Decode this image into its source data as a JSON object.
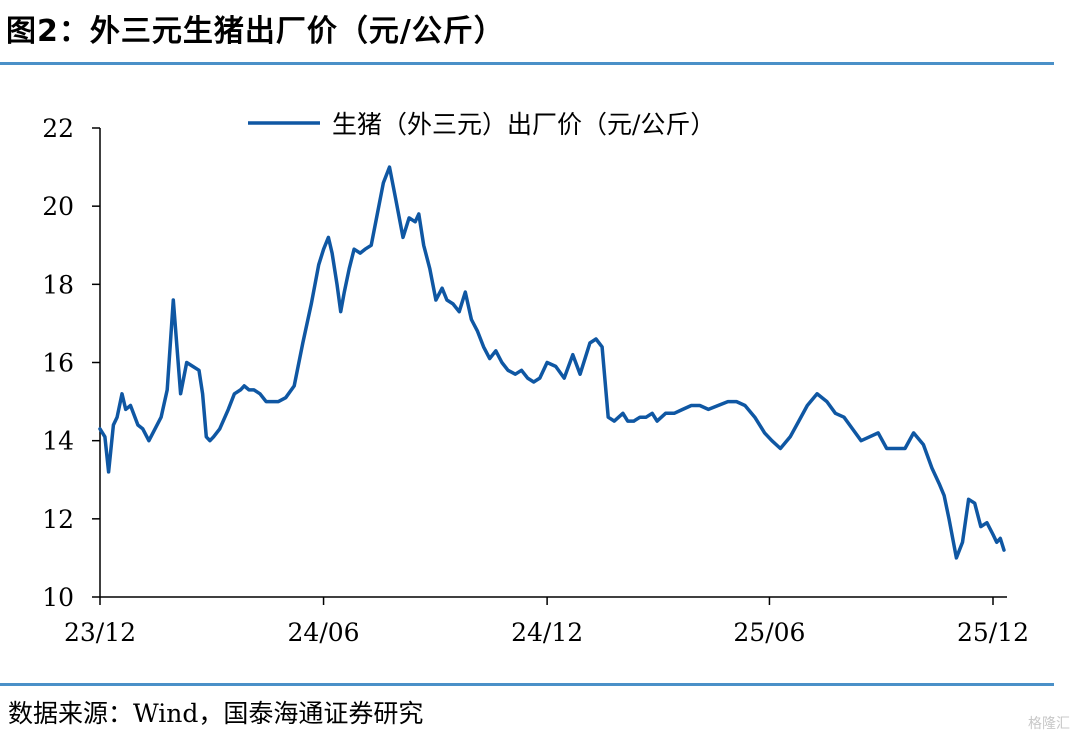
{
  "header": {
    "title": "图2：外三元生猪出厂价（元/公斤）"
  },
  "footer": {
    "source": "数据来源：Wind，国泰海通证券研究",
    "watermark": "格隆汇"
  },
  "colors": {
    "line": "#0f57a3",
    "rule": "#4a90c8",
    "axis": "#000000"
  },
  "chart_data": {
    "type": "line",
    "title": "",
    "xlabel": "",
    "ylabel": "",
    "ylim": [
      10,
      22
    ],
    "yticks": [
      10,
      12,
      14,
      16,
      18,
      20,
      22
    ],
    "xticks": [
      "23/12",
      "24/06",
      "24/12",
      "25/06",
      "25/12"
    ],
    "x_range": [
      "2023-12",
      "2025-12"
    ],
    "grid": false,
    "legend": "top-center",
    "series": [
      {
        "name": "生猪（外三元）出厂价（元/公斤）",
        "x": [
          "2023-12-01",
          "2023-12-05",
          "2023-12-08",
          "2023-12-12",
          "2023-12-15",
          "2023-12-19",
          "2023-12-22",
          "2023-12-26",
          "2024-01-01",
          "2024-01-05",
          "2024-01-10",
          "2024-01-15",
          "2024-01-20",
          "2024-01-25",
          "2024-01-30",
          "2024-02-05",
          "2024-02-10",
          "2024-02-15",
          "2024-02-20",
          "2024-02-23",
          "2024-02-26",
          "2024-02-29",
          "2024-03-03",
          "2024-03-08",
          "2024-03-15",
          "2024-03-20",
          "2024-03-25",
          "2024-03-28",
          "2024-04-01",
          "2024-04-05",
          "2024-04-10",
          "2024-04-15",
          "2024-04-20",
          "2024-04-25",
          "2024-05-01",
          "2024-05-08",
          "2024-05-15",
          "2024-05-22",
          "2024-05-28",
          "2024-06-01",
          "2024-06-05",
          "2024-06-08",
          "2024-06-12",
          "2024-06-15",
          "2024-06-18",
          "2024-06-22",
          "2024-06-26",
          "2024-07-01",
          "2024-07-05",
          "2024-07-10",
          "2024-07-15",
          "2024-07-20",
          "2024-07-25",
          "2024-07-30",
          "2024-08-05",
          "2024-08-10",
          "2024-08-15",
          "2024-08-18",
          "2024-08-22",
          "2024-08-27",
          "2024-09-01",
          "2024-09-06",
          "2024-09-10",
          "2024-09-15",
          "2024-09-20",
          "2024-09-25",
          "2024-09-30",
          "2024-10-05",
          "2024-10-10",
          "2024-10-15",
          "2024-10-20",
          "2024-10-25",
          "2024-10-30",
          "2024-11-05",
          "2024-11-10",
          "2024-11-15",
          "2024-11-20",
          "2024-11-25",
          "2024-12-01",
          "2024-12-08",
          "2024-12-15",
          "2024-12-22",
          "2024-12-28",
          "2025-01-05",
          "2025-01-10",
          "2025-01-15",
          "2025-01-20",
          "2025-01-25",
          "2025-02-01",
          "2025-02-05",
          "2025-02-10",
          "2025-02-15",
          "2025-02-20",
          "2025-02-25",
          "2025-03-01",
          "2025-03-08",
          "2025-03-15",
          "2025-03-22",
          "2025-03-29",
          "2025-04-05",
          "2025-04-12",
          "2025-04-20",
          "2025-04-28",
          "2025-05-05",
          "2025-05-12",
          "2025-05-20",
          "2025-05-28",
          "2025-06-03",
          "2025-06-10",
          "2025-06-18",
          "2025-06-25",
          "2025-07-02",
          "2025-07-10",
          "2025-07-18",
          "2025-07-25",
          "2025-08-01",
          "2025-08-08",
          "2025-08-15",
          "2025-08-22",
          "2025-08-29",
          "2025-09-05",
          "2025-09-12",
          "2025-09-20",
          "2025-09-27",
          "2025-10-05",
          "2025-10-12",
          "2025-10-18",
          "2025-10-22",
          "2025-10-26",
          "2025-11-01",
          "2025-11-06",
          "2025-11-11",
          "2025-11-16",
          "2025-11-21",
          "2025-11-26",
          "2025-12-01",
          "2025-12-04",
          "2025-12-07",
          "2025-12-10"
        ],
        "values": [
          14.3,
          14.1,
          13.2,
          14.4,
          14.6,
          15.2,
          14.8,
          14.9,
          14.4,
          14.3,
          14.0,
          14.3,
          14.6,
          15.3,
          17.6,
          15.2,
          16.0,
          15.9,
          15.8,
          15.2,
          14.1,
          14.0,
          14.1,
          14.3,
          14.8,
          15.2,
          15.3,
          15.4,
          15.3,
          15.3,
          15.2,
          15.0,
          15.0,
          15.0,
          15.1,
          15.4,
          16.5,
          17.5,
          18.5,
          18.9,
          19.2,
          18.8,
          18.0,
          17.3,
          17.8,
          18.4,
          18.9,
          18.8,
          18.9,
          19.0,
          19.8,
          20.6,
          21.0,
          20.2,
          19.2,
          19.7,
          19.6,
          19.8,
          19.0,
          18.4,
          17.6,
          17.9,
          17.6,
          17.5,
          17.3,
          17.8,
          17.1,
          16.8,
          16.4,
          16.1,
          16.3,
          16.0,
          15.8,
          15.7,
          15.8,
          15.6,
          15.5,
          15.6,
          16.0,
          15.9,
          15.6,
          16.2,
          15.7,
          16.5,
          16.6,
          16.4,
          14.6,
          14.5,
          14.7,
          14.5,
          14.5,
          14.6,
          14.6,
          14.7,
          14.5,
          14.7,
          14.7,
          14.8,
          14.9,
          14.9,
          14.8,
          14.9,
          15.0,
          15.0,
          14.9,
          14.6,
          14.2,
          14.0,
          13.8,
          14.1,
          14.5,
          14.9,
          15.2,
          15.0,
          14.7,
          14.6,
          14.3,
          14.0,
          14.1,
          14.2,
          13.8,
          13.8,
          13.8,
          14.2,
          13.9,
          13.3,
          12.9,
          12.6,
          12.0,
          11.0,
          11.4,
          12.5,
          12.4,
          11.8,
          11.9,
          11.6,
          11.4,
          11.5,
          11.2
        ]
      }
    ]
  }
}
